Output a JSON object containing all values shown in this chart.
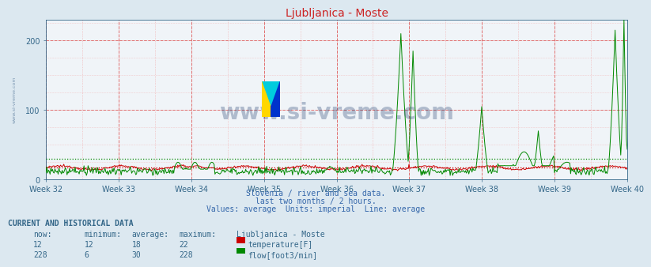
{
  "title": "Ljubljanica - Moste",
  "bg_color": "#dce8f0",
  "plot_bg_color": "#f0f4f8",
  "x_labels": [
    "Week 32",
    "Week 33",
    "Week 34",
    "Week 35",
    "Week 36",
    "Week 37",
    "Week 38",
    "Week 39",
    "Week 40"
  ],
  "ylim": [
    0,
    230
  ],
  "yticks": [
    0,
    100,
    200
  ],
  "subtitle_lines": [
    "Slovenia / river and sea data.",
    "last two months / 2 hours.",
    "Values: average  Units: imperial  Line: average"
  ],
  "table_header": "CURRENT AND HISTORICAL DATA",
  "table_cols": [
    "now:",
    "minimum:",
    "average:",
    "maximum:",
    "Ljubljanica - Moste"
  ],
  "temp_row": [
    "12",
    "12",
    "18",
    "22"
  ],
  "flow_row": [
    "228",
    "6",
    "30",
    "228"
  ],
  "temp_label": "temperature[F]",
  "flow_label": "flow[foot3/min]",
  "temp_color": "#cc0000",
  "flow_color": "#008800",
  "temp_avg": 18,
  "flow_avg": 30,
  "watermark": "www.si-vreme.com",
  "watermark_color": "#1a3a6a",
  "left_label": "www.si-vreme.com",
  "n_weeks": 9,
  "n_points": 720
}
